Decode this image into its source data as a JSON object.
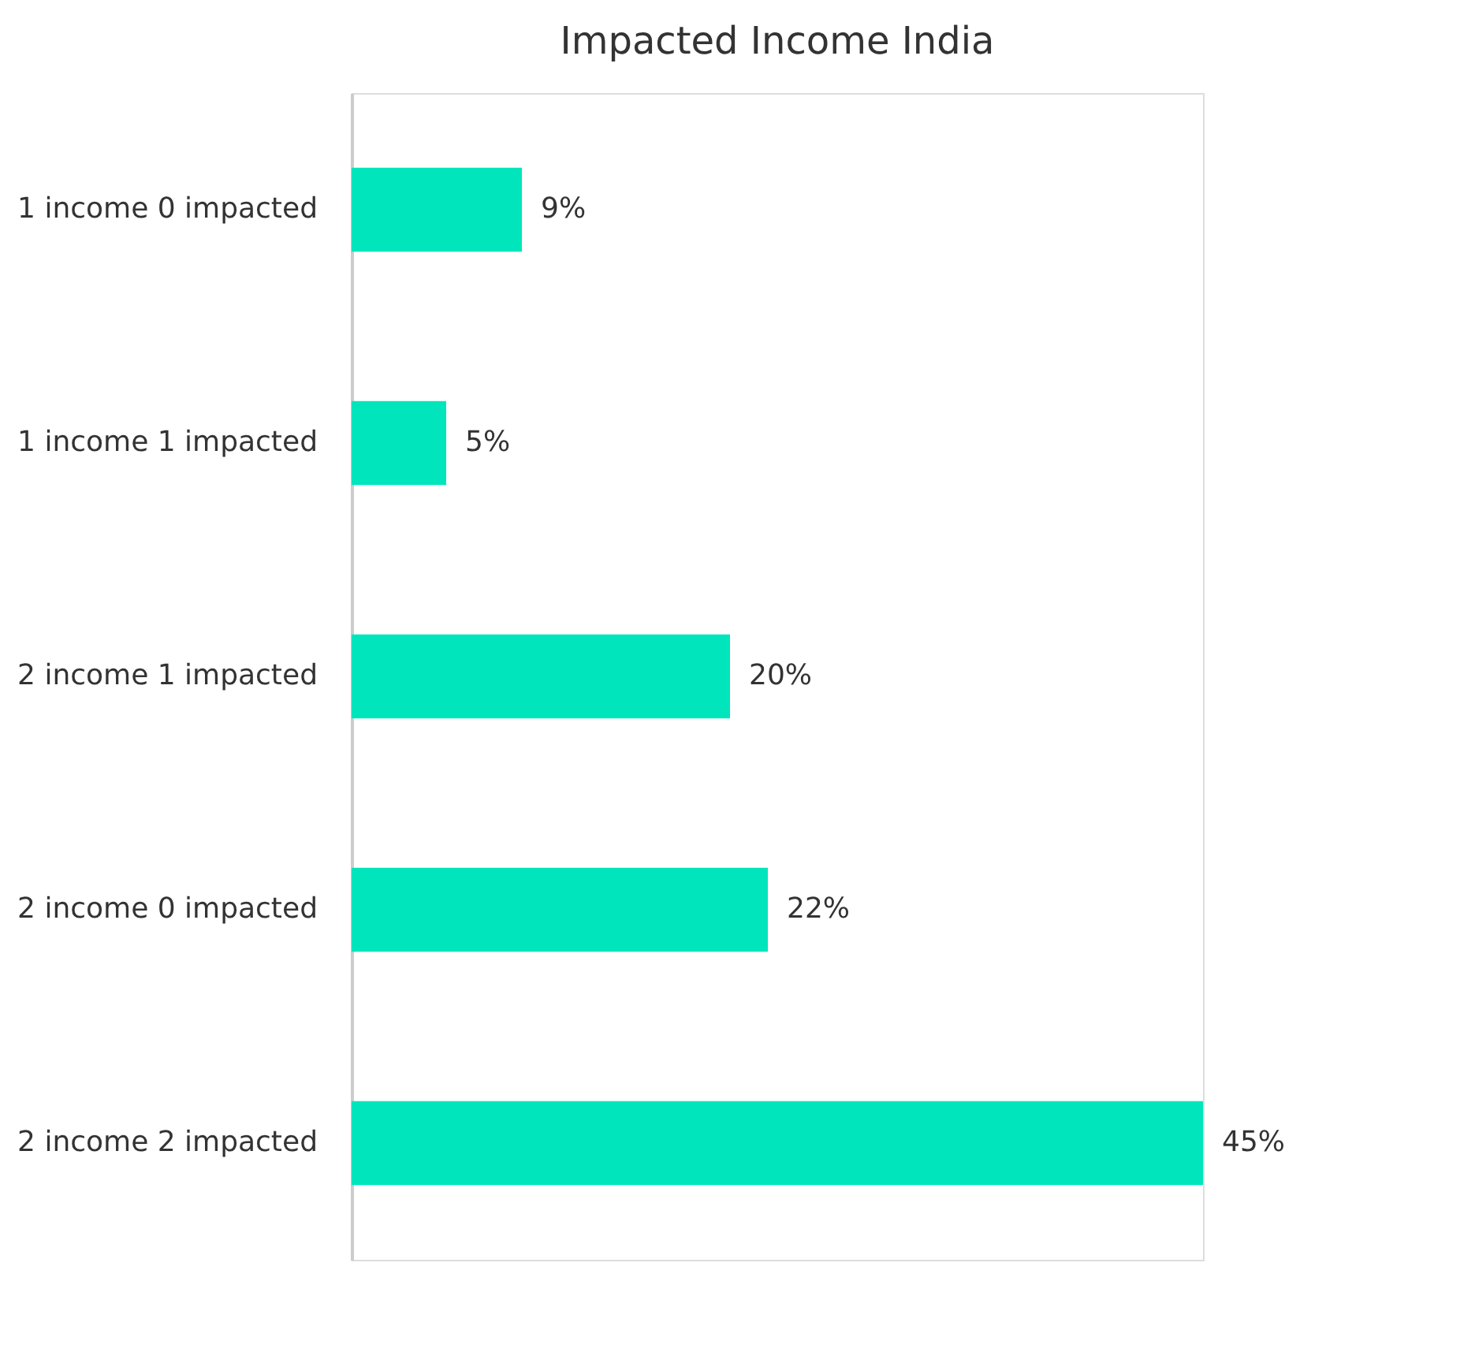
{
  "chart_data": {
    "type": "bar",
    "orientation": "horizontal",
    "title": "Impacted Income India",
    "categories": [
      "1 income 0 impacted",
      "1 income 1 impacted",
      "2 income 1 impacted",
      "2 income 0 impacted",
      "2 income 2 impacted"
    ],
    "values": [
      9,
      5,
      20,
      22,
      45
    ],
    "value_labels": [
      "9%",
      "5%",
      "20%",
      "22%",
      "45%"
    ],
    "color": "#00e5bc"
  }
}
